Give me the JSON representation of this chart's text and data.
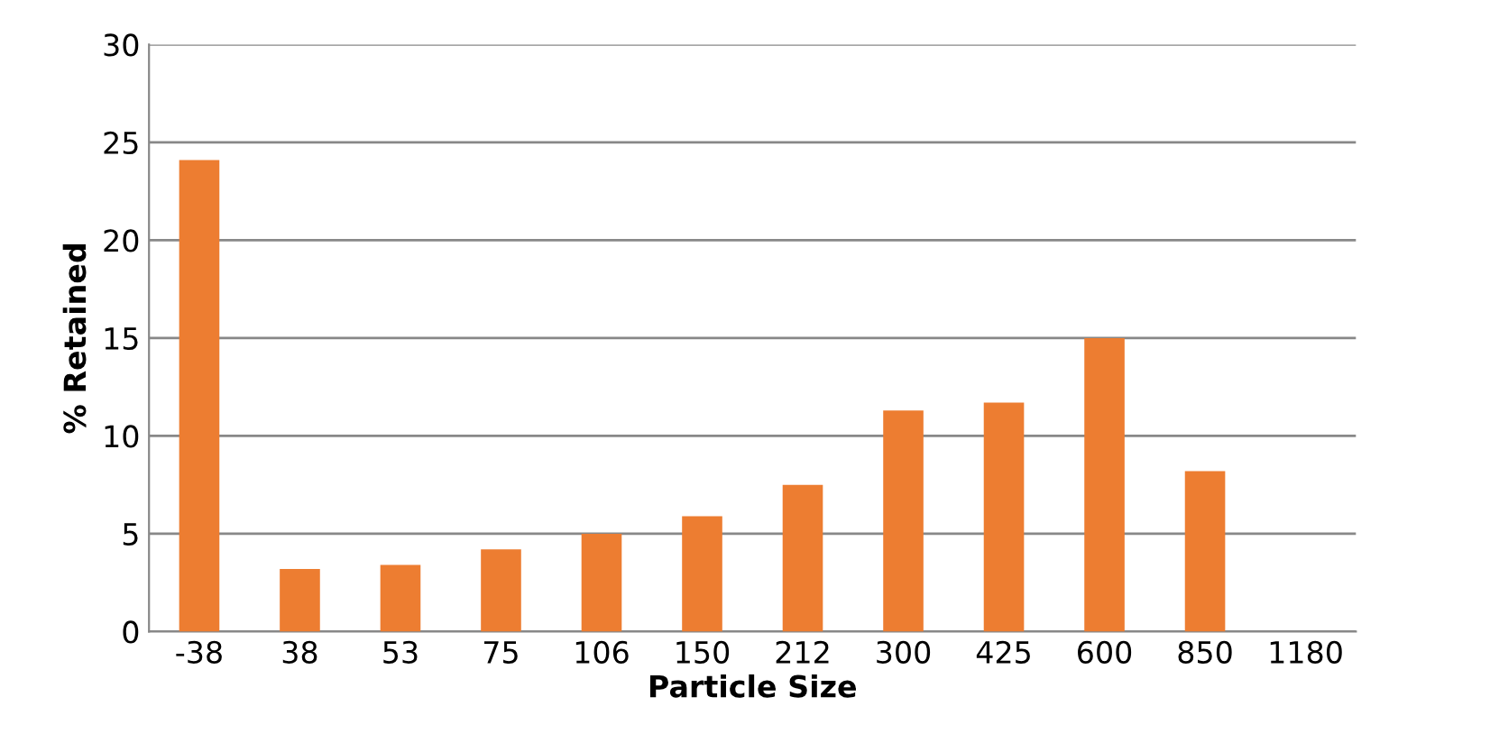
{
  "chart_data": {
    "type": "bar",
    "xlabel": "Particle Size",
    "ylabel": "% Retained",
    "categories": [
      "-38",
      "38",
      "53",
      "75",
      "106",
      "150",
      "212",
      "300",
      "425",
      "600",
      "850",
      "1180"
    ],
    "values": [
      24.1,
      3.2,
      3.4,
      4.2,
      5.0,
      5.9,
      7.5,
      11.3,
      11.7,
      15.0,
      8.2,
      0
    ],
    "color": "#ed7d31",
    "ylim": [
      0,
      30
    ],
    "yticks": [
      0,
      5,
      10,
      15,
      20,
      25,
      30
    ],
    "grid": "y"
  }
}
